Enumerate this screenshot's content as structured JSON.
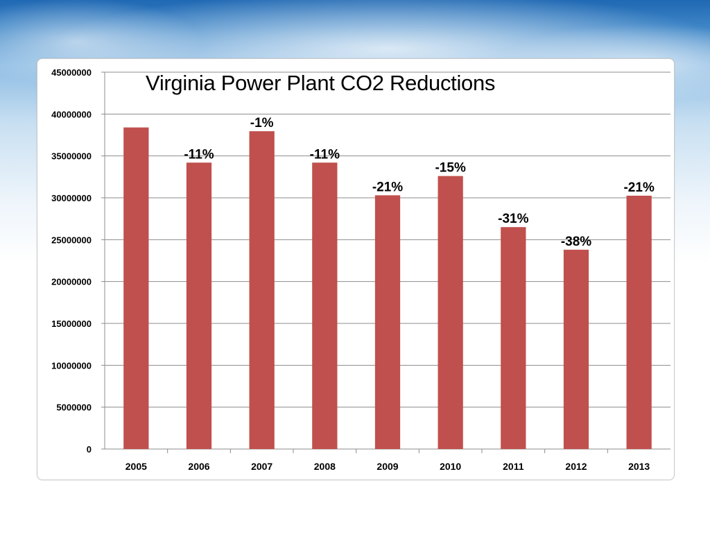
{
  "chart_data": {
    "type": "bar",
    "title": "Virginia Power Plant CO2 Reductions",
    "categories": [
      "2005",
      "2006",
      "2007",
      "2008",
      "2009",
      "2010",
      "2011",
      "2012",
      "2013"
    ],
    "values": [
      38400000,
      34200000,
      37950000,
      34200000,
      30300000,
      32600000,
      26500000,
      23800000,
      30250000
    ],
    "data_labels": [
      "",
      "-11%",
      "-1%",
      "-11%",
      "-21%",
      "-15%",
      "-31%",
      "-38%",
      "-21%"
    ],
    "ylim": [
      0,
      45000000
    ],
    "yticks": [
      0,
      5000000,
      10000000,
      15000000,
      20000000,
      25000000,
      30000000,
      35000000,
      40000000,
      45000000
    ],
    "ytick_labels": [
      "0",
      "5000000",
      "10000000",
      "15000000",
      "20000000",
      "25000000",
      "30000000",
      "35000000",
      "40000000",
      "45000000"
    ],
    "xlabel": "",
    "ylabel": "",
    "grid": true,
    "legend": "none",
    "bar_color": "#c0504d"
  }
}
